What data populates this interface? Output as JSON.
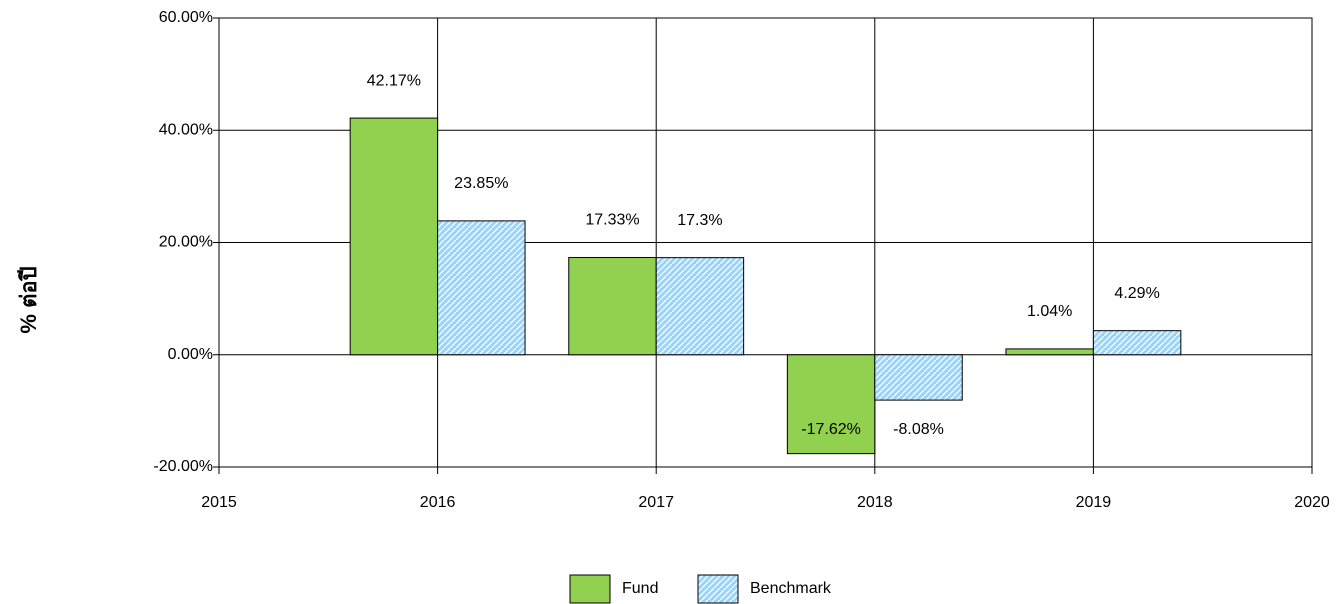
{
  "chart_data": {
    "type": "bar",
    "y_label": "% ต่อปี",
    "x": [
      2016,
      2017,
      2018,
      2019
    ],
    "xlim": [
      2015,
      2020
    ],
    "xticks": [
      2015,
      2016,
      2017,
      2018,
      2019,
      2020
    ],
    "ylim": [
      -20,
      60
    ],
    "yticks": [
      {
        "value": -20,
        "label": "-20.00%"
      },
      {
        "value": 0,
        "label": "0.00%"
      },
      {
        "value": 20,
        "label": "20.00%"
      },
      {
        "value": 40,
        "label": "40.00%"
      },
      {
        "value": 60,
        "label": "60.00%"
      }
    ],
    "grid": true,
    "legend": "bottom",
    "series": [
      {
        "name": "Fund",
        "color": "#92d050",
        "values": [
          42.17,
          17.33,
          -17.62,
          1.04
        ],
        "value_labels": [
          "42.17%",
          "17.33%",
          "-17.62%",
          "1.04%"
        ]
      },
      {
        "name": "Benchmark",
        "color": "#9dd3f5",
        "pattern": "hatch",
        "values": [
          23.85,
          17.3,
          -8.08,
          4.29
        ],
        "value_labels": [
          "23.85%",
          "17.3%",
          "-8.08%",
          "4.29%"
        ]
      }
    ]
  }
}
